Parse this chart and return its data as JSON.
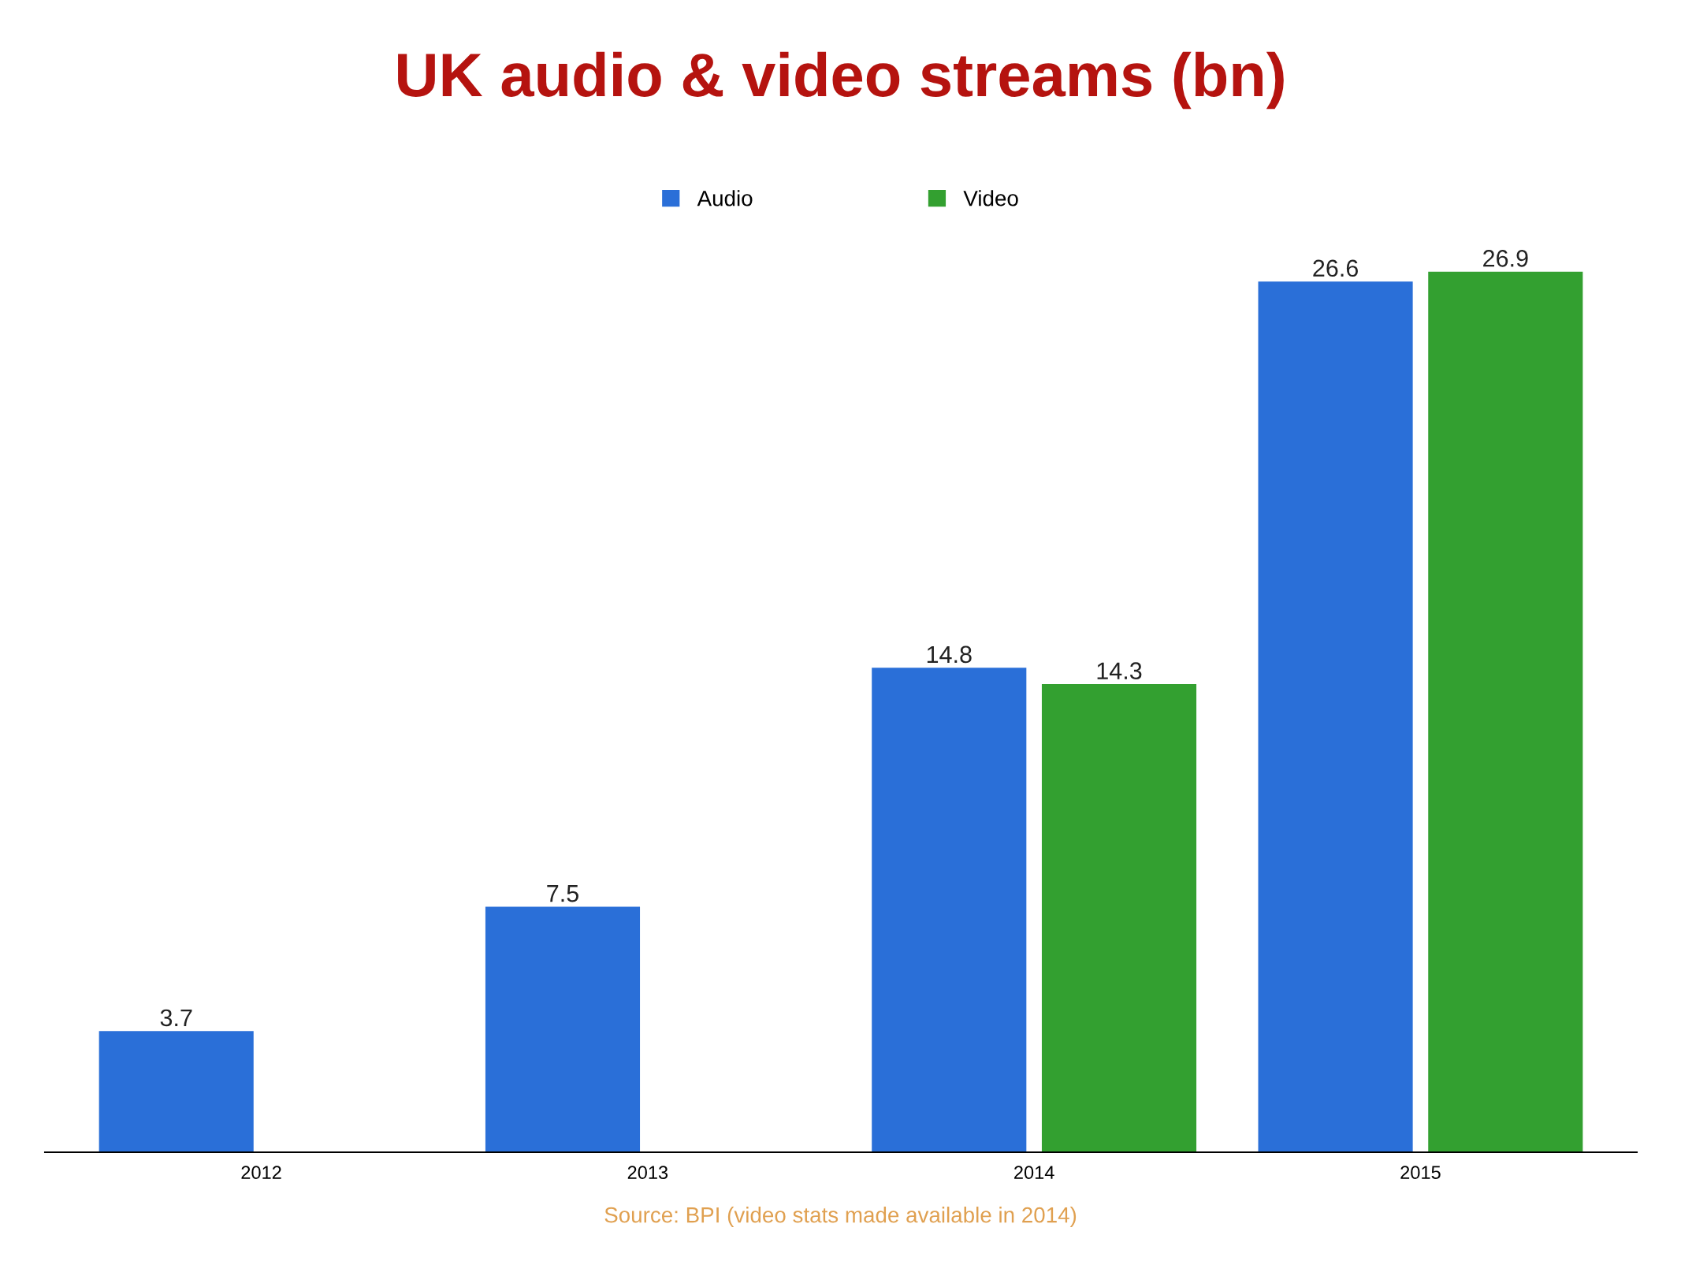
{
  "chart_data": {
    "type": "bar",
    "title": "UK audio & video streams (bn)",
    "categories": [
      "2012",
      "2013",
      "2014",
      "2015"
    ],
    "series": [
      {
        "name": "Audio",
        "color": "#2a6fd8",
        "values": [
          3.7,
          7.5,
          14.8,
          26.6
        ]
      },
      {
        "name": "Video",
        "color": "#33a030",
        "values": [
          null,
          null,
          14.3,
          26.9
        ]
      }
    ],
    "data_labels": true,
    "legend": "top",
    "annotations": [
      "Source: BPI (video stats made available in 2014)"
    ]
  }
}
